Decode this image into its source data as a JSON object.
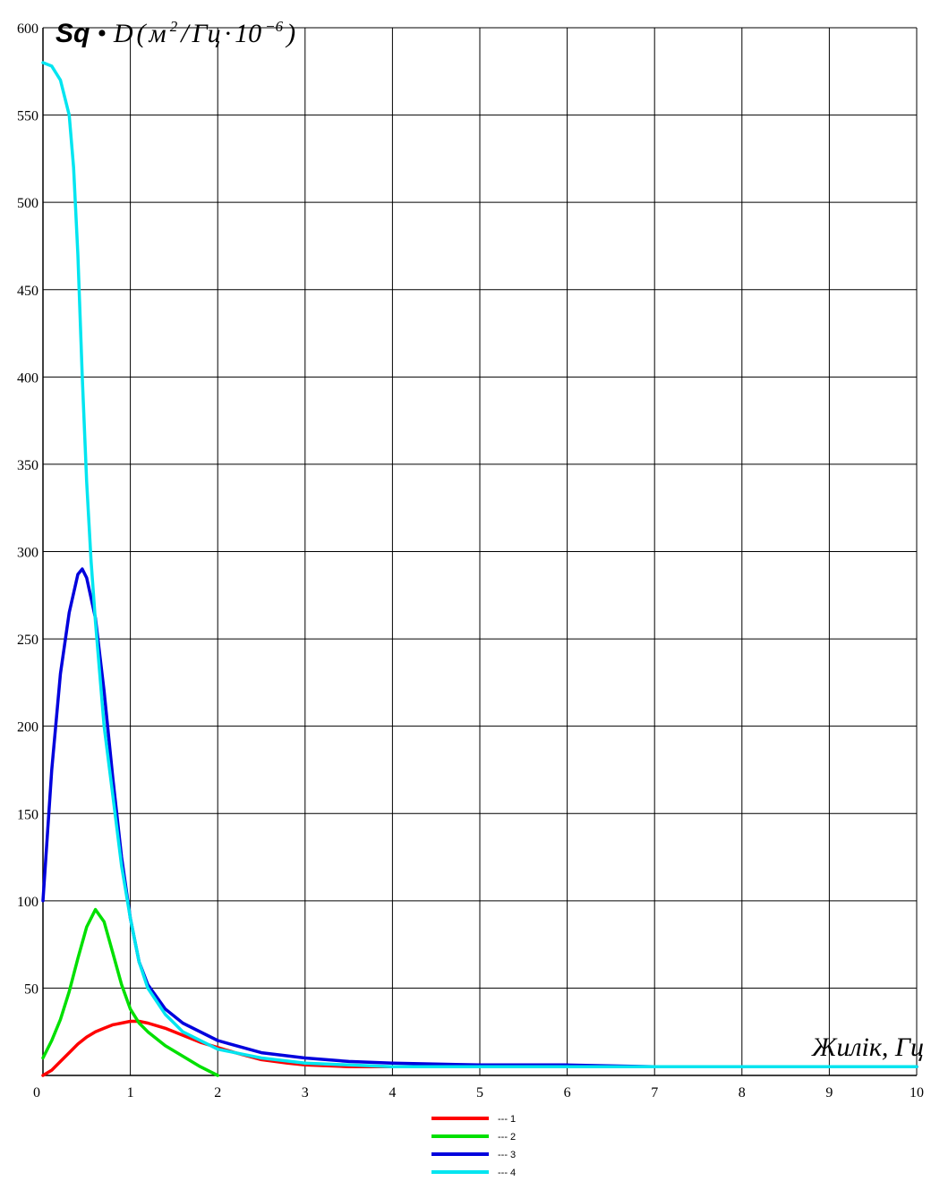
{
  "chart_data": {
    "type": "line",
    "ylabel": {
      "symbol": "Sq",
      "operator": "•",
      "func": "D",
      "open_paren": "(",
      "unit_m": "м",
      "unit_m_exp": "2",
      "unit_div": "/",
      "unit_hz": "Гц",
      "dot": "·",
      "ten": "10",
      "ten_exp": "−6",
      "close_paren": ")"
    },
    "xlabel": "Жилік, Гц",
    "xlim": [
      0,
      10
    ],
    "ylim": [
      0,
      600
    ],
    "grid": true,
    "legend_position": "bottom-center",
    "x_ticks": [
      "0",
      "1",
      "2",
      "3",
      "4",
      "5",
      "6",
      "7",
      "8",
      "9",
      "10"
    ],
    "y_ticks": [
      "50",
      "100",
      "150",
      "200",
      "250",
      "300",
      "350",
      "400",
      "450",
      "500",
      "550",
      "600"
    ],
    "series": [
      {
        "name": "--- 1",
        "color": "#ff0000",
        "x": [
          0,
          0.1,
          0.2,
          0.3,
          0.4,
          0.5,
          0.6,
          0.7,
          0.8,
          0.9,
          1.0,
          1.1,
          1.2,
          1.4,
          1.6,
          1.8,
          2.0,
          2.2,
          2.5,
          2.8,
          3.0,
          3.5,
          4.0,
          5.0,
          6.0,
          7.0,
          8.0,
          9.0,
          10.0
        ],
        "y": [
          0,
          3,
          8,
          13,
          18,
          22,
          25,
          27,
          29,
          30,
          31,
          31,
          30,
          27,
          23,
          19,
          16,
          13,
          9,
          7,
          6,
          5,
          5,
          5,
          5,
          5,
          5,
          5,
          5
        ]
      },
      {
        "name": "--- 2",
        "color": "#00e000",
        "x": [
          0,
          0.1,
          0.2,
          0.3,
          0.4,
          0.5,
          0.6,
          0.7,
          0.8,
          0.9,
          1.0,
          1.1,
          1.2,
          1.4,
          1.6,
          1.8,
          2.0
        ],
        "y": [
          10,
          20,
          32,
          48,
          67,
          85,
          95,
          88,
          70,
          52,
          38,
          30,
          25,
          17,
          11,
          5,
          0
        ]
      },
      {
        "name": "--- 3",
        "color": "#0000dd",
        "x": [
          0,
          0.1,
          0.2,
          0.3,
          0.4,
          0.45,
          0.5,
          0.6,
          0.7,
          0.8,
          0.9,
          1.0,
          1.1,
          1.2,
          1.4,
          1.6,
          2.0,
          2.5,
          3.0,
          3.5,
          4.0,
          5.0,
          6.0,
          7.0,
          8.0,
          9.0,
          10.0
        ],
        "y": [
          100,
          175,
          230,
          265,
          287,
          290,
          285,
          262,
          220,
          170,
          125,
          90,
          65,
          52,
          38,
          30,
          20,
          13,
          10,
          8,
          7,
          6,
          6,
          5,
          5,
          5,
          5
        ]
      },
      {
        "name": "--- 4",
        "color": "#00e5f0",
        "x": [
          0,
          0.1,
          0.2,
          0.3,
          0.35,
          0.4,
          0.45,
          0.5,
          0.55,
          0.6,
          0.7,
          0.8,
          0.9,
          1.0,
          1.1,
          1.2,
          1.4,
          1.6,
          2.0,
          2.5,
          3.0,
          4.0,
          5.0,
          6.0,
          7.0,
          8.0,
          9.0,
          10.0
        ],
        "y": [
          580,
          578,
          570,
          550,
          520,
          470,
          400,
          340,
          295,
          260,
          200,
          160,
          120,
          90,
          65,
          50,
          35,
          25,
          15,
          10,
          7,
          5,
          5,
          5,
          5,
          5,
          5,
          5
        ]
      }
    ]
  }
}
